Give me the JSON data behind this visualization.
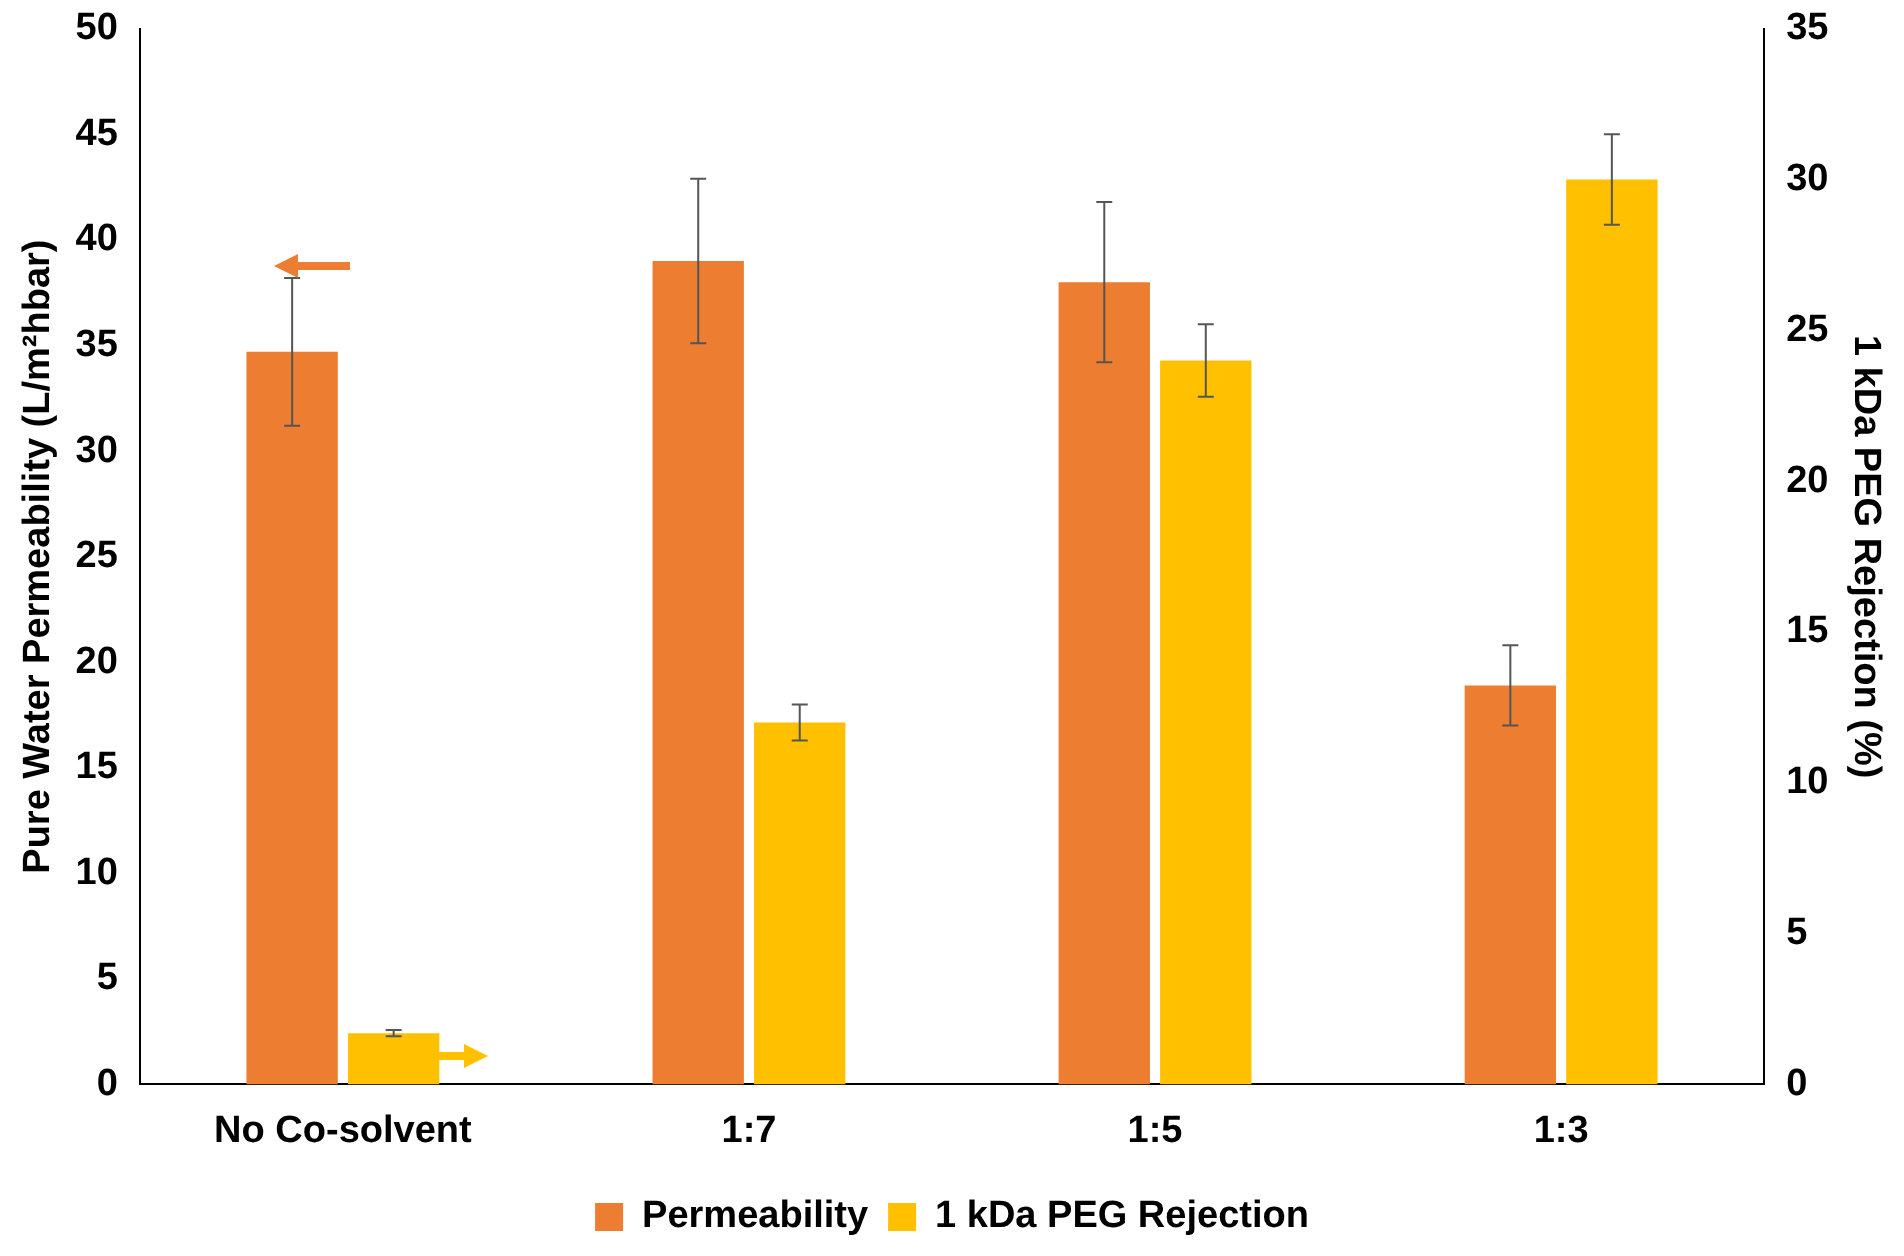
{
  "chart_data": {
    "type": "bar",
    "categories": [
      "No Co-solvent",
      "1:7",
      "1:5",
      "1:3"
    ],
    "ylabel": "Pure Water Permeability (L/m²hbar)",
    "y2label": "1 kDa PEG Rejection (%)",
    "series": [
      {
        "name": "Permeability",
        "color": "#ed7d31",
        "values": [
          34.7,
          39.0,
          38.0,
          18.9
        ],
        "errors": [
          3.5,
          3.9,
          3.8,
          1.9
        ]
      },
      {
        "name": "1 kDa PEG Rejection",
        "color": "#ffc000",
        "axis": "y2",
        "values": [
          1.7,
          12.0,
          24.0,
          30.0
        ],
        "errors": [
          0.1,
          0.6,
          1.2,
          1.5
        ]
      }
    ],
    "ylim": [
      0,
      50
    ],
    "yticks": [
      0,
      5,
      10,
      15,
      20,
      25,
      30,
      35,
      40,
      45,
      50
    ],
    "y2lim": [
      0,
      35
    ],
    "y2ticks": [
      0,
      5,
      10,
      15,
      20,
      25,
      30,
      35
    ],
    "grid": false,
    "legend": "bottom"
  }
}
